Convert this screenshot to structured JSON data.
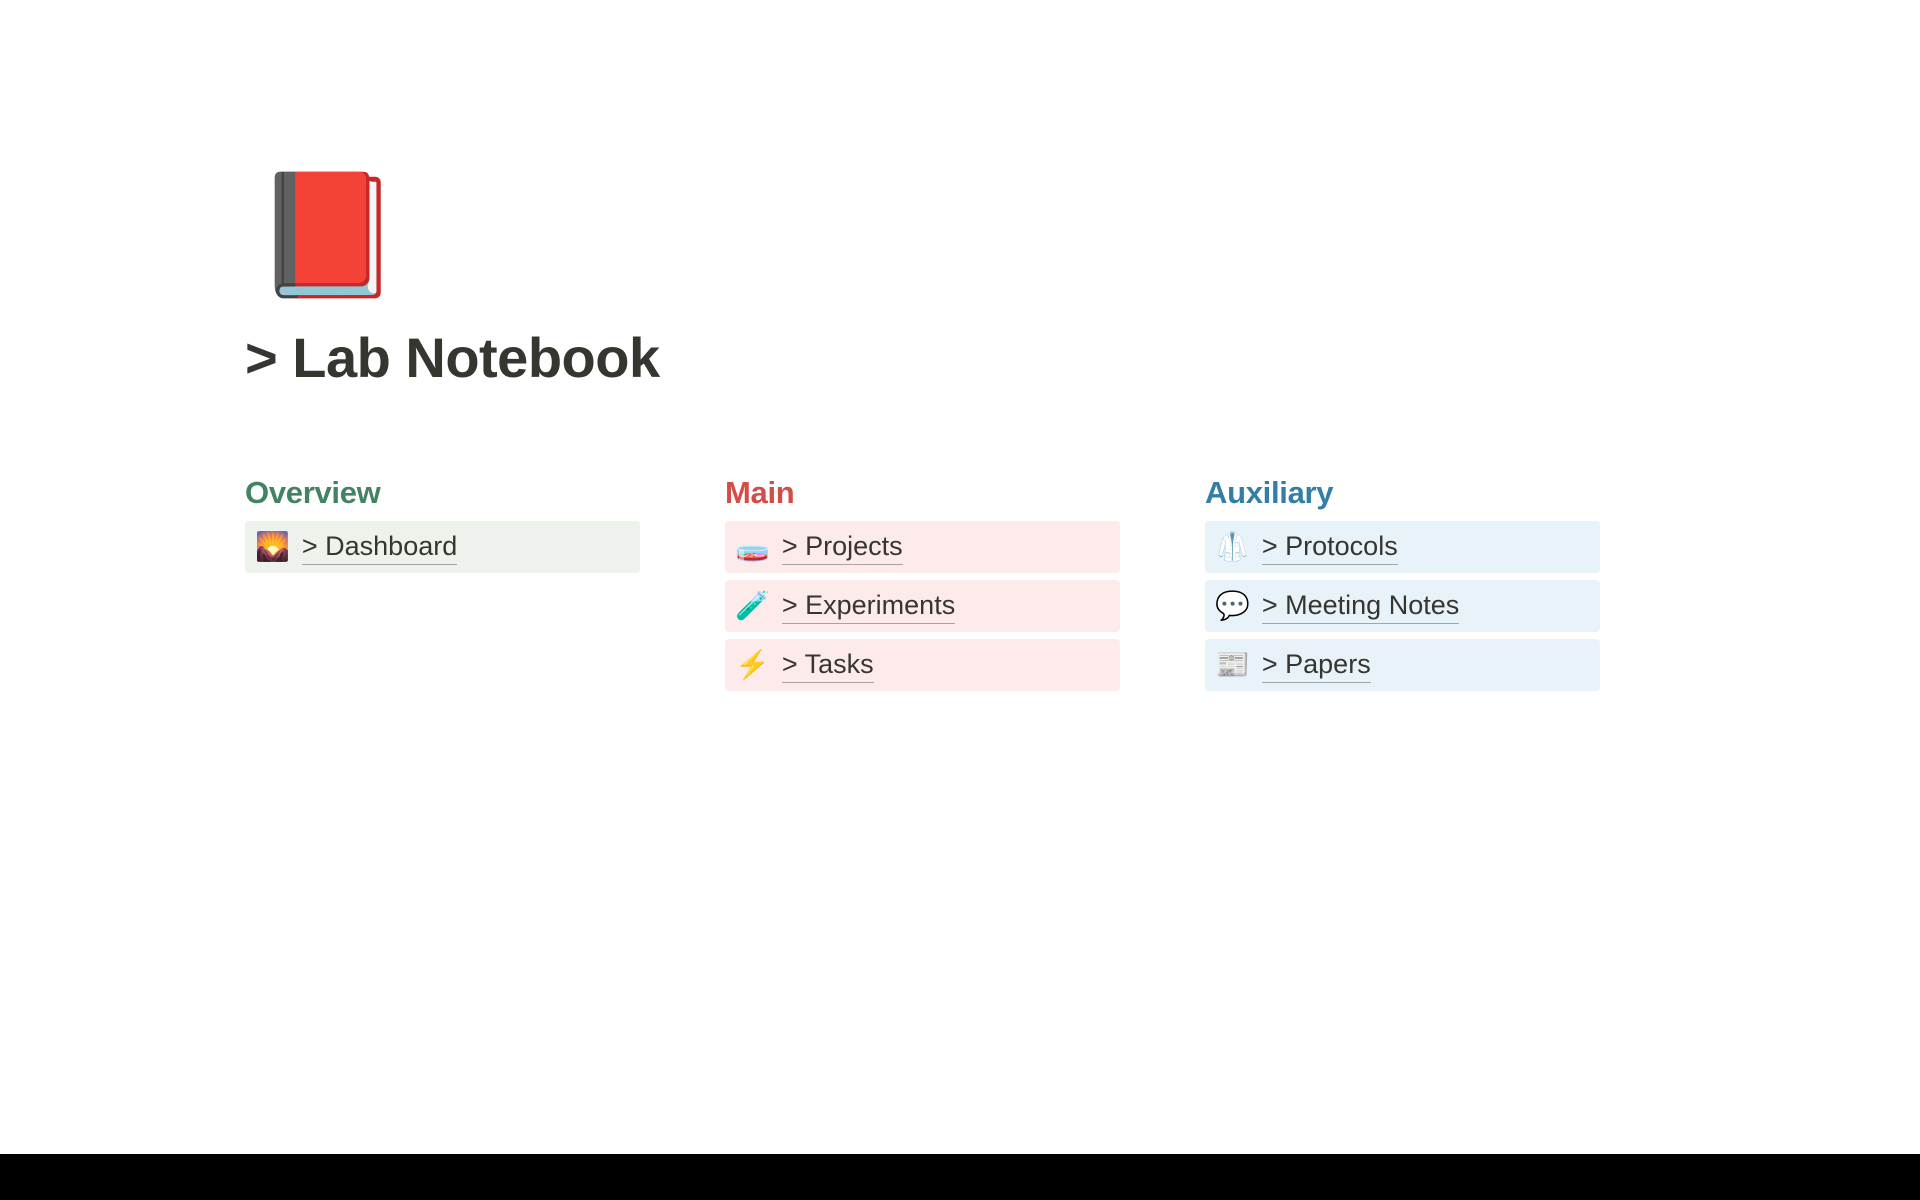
{
  "page": {
    "icon": "📕",
    "title": "> Lab Notebook"
  },
  "columns": [
    {
      "heading": "Overview",
      "headingColor": "green",
      "items": [
        {
          "icon": "🌄",
          "label": "> Dashboard"
        }
      ]
    },
    {
      "heading": "Main",
      "headingColor": "red",
      "items": [
        {
          "icon": "🧫",
          "label": "> Projects"
        },
        {
          "icon": "🧪",
          "label": "> Experiments"
        },
        {
          "icon": "⚡",
          "label": "> Tasks"
        }
      ]
    },
    {
      "heading": "Auxiliary",
      "headingColor": "blue",
      "items": [
        {
          "icon": "🥼",
          "label": "> Protocols"
        },
        {
          "icon": "💬",
          "label": "> Meeting Notes"
        },
        {
          "icon": "📰",
          "label": "> Papers"
        }
      ]
    }
  ],
  "colors": {
    "green": {
      "text": "#448361",
      "bg": "#edf3ec"
    },
    "red": {
      "text": "#d44c47",
      "bg": "#fdebec"
    },
    "blue": {
      "text": "#337ea9",
      "bg": "#e7f3f8"
    }
  }
}
